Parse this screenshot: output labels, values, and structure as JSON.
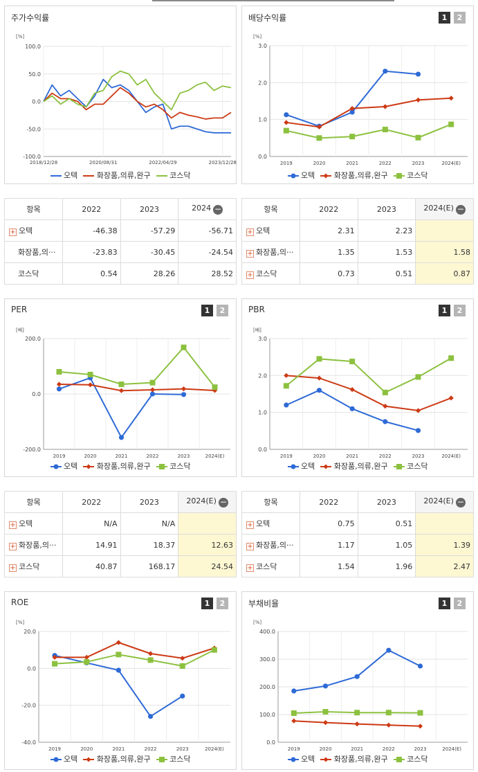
{
  "colors": {
    "otek": "#2e6ad6",
    "industry": "#cc3a14",
    "kosdaq": "#8cc13f"
  },
  "legend": [
    "오텍",
    "화장품,의류,완구",
    "코스닥"
  ],
  "tabs": [
    "1",
    "2"
  ],
  "panels": {
    "stock": {
      "title": "주가수익률",
      "unit": "[%]",
      "yticks": [
        "100.0",
        "50.0",
        "0.0",
        "-50.0",
        "-100.0"
      ],
      "xticks": [
        "2018/12/28",
        "2020/08/31",
        "2022/04/29",
        "2023/12/28"
      ]
    },
    "dividend": {
      "title": "배당수익률",
      "unit": "[%]",
      "yticks": [
        "3.0",
        "2.0",
        "1.0",
        "0.0"
      ],
      "xticks": [
        "2019",
        "2020",
        "2021",
        "2022",
        "2023",
        "2024(E)"
      ]
    },
    "per": {
      "title": "PER",
      "unit": "[배]",
      "yticks": [
        "200.0",
        "0.0",
        "-200.0"
      ],
      "xticks": [
        "2019",
        "2020",
        "2021",
        "2022",
        "2023",
        "2024(E)"
      ]
    },
    "pbr": {
      "title": "PBR",
      "unit": "[배]",
      "yticks": [
        "3.0",
        "2.0",
        "1.0",
        "0.0"
      ],
      "xticks": [
        "2019",
        "2020",
        "2021",
        "2022",
        "2023",
        "2024(E)"
      ]
    },
    "roe": {
      "title": "ROE",
      "unit": "[%]",
      "yticks": [
        "20.0",
        "0.0",
        "-20.0",
        "-40.0"
      ],
      "xticks": [
        "2019",
        "2020",
        "2021",
        "2022",
        "2023",
        "2024(E)"
      ]
    },
    "debt": {
      "title": "부채비율",
      "unit": "[%]",
      "yticks": [
        "400.0",
        "300.0",
        "200.0",
        "100.0",
        "0.0"
      ],
      "xticks": [
        "2019",
        "2020",
        "2021",
        "2022",
        "2023",
        "2024(E)"
      ]
    }
  },
  "tables": {
    "stock": {
      "headers": [
        "항목",
        "2022",
        "2023",
        "2024"
      ],
      "rows": [
        {
          "name": "오텍",
          "plus": true,
          "values": [
            "-46.38",
            "-57.29",
            "-56.71"
          ]
        },
        {
          "name": "화장품,의···",
          "plus": false,
          "values": [
            "-23.83",
            "-30.45",
            "-24.54"
          ]
        },
        {
          "name": "코스닥",
          "plus": false,
          "values": [
            "0.54",
            "28.26",
            "28.52"
          ]
        }
      ]
    },
    "dividend": {
      "headers": [
        "항목",
        "2022",
        "2023",
        "2024(E)"
      ],
      "rows": [
        {
          "name": "오텍",
          "plus": true,
          "values": [
            "2.31",
            "2.23",
            ""
          ]
        },
        {
          "name": "화장품,의···",
          "plus": true,
          "values": [
            "1.35",
            "1.53",
            "1.58"
          ]
        },
        {
          "name": "코스닥",
          "plus": true,
          "values": [
            "0.73",
            "0.51",
            "0.87"
          ]
        }
      ]
    },
    "per": {
      "headers": [
        "항목",
        "2022",
        "2023",
        "2024(E)"
      ],
      "rows": [
        {
          "name": "오텍",
          "plus": true,
          "values": [
            "N/A",
            "N/A",
            ""
          ]
        },
        {
          "name": "화장품,의···",
          "plus": true,
          "values": [
            "14.91",
            "18.37",
            "12.63"
          ]
        },
        {
          "name": "코스닥",
          "plus": true,
          "values": [
            "40.87",
            "168.17",
            "24.54"
          ]
        }
      ]
    },
    "pbr": {
      "headers": [
        "항목",
        "2022",
        "2023",
        "2024(E)"
      ],
      "rows": [
        {
          "name": "오텍",
          "plus": true,
          "values": [
            "0.75",
            "0.51",
            ""
          ]
        },
        {
          "name": "화장품,의···",
          "plus": true,
          "values": [
            "1.17",
            "1.05",
            "1.39"
          ]
        },
        {
          "name": "코스닥",
          "plus": true,
          "values": [
            "1.54",
            "1.96",
            "2.47"
          ]
        }
      ]
    }
  },
  "chart_data": [
    {
      "id": "stock",
      "type": "line",
      "title": "주가수익률",
      "ylabel": "[%]",
      "ylim": [
        -100,
        100
      ],
      "x": [
        "2018/12/28",
        "2019/03",
        "2019/06",
        "2019/09",
        "2019/12",
        "2020/03",
        "2020/05",
        "2020/08/31",
        "2020/11",
        "2021/02",
        "2021/05",
        "2021/08",
        "2021/11",
        "2022/02",
        "2022/04/29",
        "2022/07",
        "2022/10",
        "2023/01",
        "2023/04",
        "2023/07",
        "2023/10",
        "2023/12/28",
        "2024/03"
      ],
      "series": [
        {
          "name": "오텍",
          "values": [
            0,
            30,
            10,
            20,
            5,
            -10,
            10,
            40,
            25,
            30,
            20,
            0,
            -20,
            -10,
            -5,
            -50,
            -45,
            -45,
            -50,
            -55,
            -57,
            -57,
            -57
          ]
        },
        {
          "name": "화장품,의류,완구",
          "values": [
            0,
            15,
            5,
            5,
            0,
            -15,
            -5,
            -5,
            10,
            25,
            15,
            0,
            -10,
            -5,
            -15,
            -30,
            -20,
            -25,
            -28,
            -32,
            -30,
            -30,
            -20
          ]
        },
        {
          "name": "코스닥",
          "values": [
            0,
            10,
            -5,
            5,
            -5,
            -10,
            15,
            20,
            45,
            55,
            50,
            30,
            40,
            15,
            0,
            -15,
            15,
            20,
            30,
            35,
            20,
            28,
            25
          ]
        }
      ]
    },
    {
      "id": "dividend",
      "type": "line",
      "title": "배당수익률",
      "ylabel": "[%]",
      "ylim": [
        0,
        3
      ],
      "categories": [
        "2019",
        "2020",
        "2021",
        "2022",
        "2023",
        "2024(E)"
      ],
      "series": [
        {
          "name": "오텍",
          "values": [
            1.13,
            0.82,
            1.2,
            2.31,
            2.23,
            null
          ]
        },
        {
          "name": "화장품,의류,완구",
          "values": [
            0.92,
            0.8,
            1.3,
            1.35,
            1.53,
            1.58
          ]
        },
        {
          "name": "코스닥",
          "values": [
            0.7,
            0.5,
            0.54,
            0.73,
            0.51,
            0.87
          ]
        }
      ]
    },
    {
      "id": "per",
      "type": "line",
      "title": "PER",
      "ylabel": "[배]",
      "ylim": [
        -200,
        200
      ],
      "categories": [
        "2019",
        "2020",
        "2021",
        "2022",
        "2023",
        "2024(E)"
      ],
      "series": [
        {
          "name": "오텍",
          "values": [
            18,
            58,
            -157,
            0,
            -2,
            null
          ]
        },
        {
          "name": "화장품,의류,완구",
          "values": [
            35,
            33,
            12,
            14.91,
            18.37,
            12.63
          ]
        },
        {
          "name": "코스닥",
          "values": [
            80,
            70,
            35,
            40.87,
            168.17,
            24.54
          ]
        }
      ]
    },
    {
      "id": "pbr",
      "type": "line",
      "title": "PBR",
      "ylabel": "[배]",
      "ylim": [
        0,
        3
      ],
      "categories": [
        "2019",
        "2020",
        "2021",
        "2022",
        "2023",
        "2024(E)"
      ],
      "series": [
        {
          "name": "오텍",
          "values": [
            1.2,
            1.6,
            1.1,
            0.75,
            0.51,
            null
          ]
        },
        {
          "name": "화장품,의류,완구",
          "values": [
            2.0,
            1.93,
            1.62,
            1.17,
            1.05,
            1.39
          ]
        },
        {
          "name": "코스닥",
          "values": [
            1.72,
            2.45,
            2.38,
            1.54,
            1.96,
            2.47
          ]
        }
      ]
    },
    {
      "id": "roe",
      "type": "line",
      "title": "ROE",
      "ylabel": "[%]",
      "ylim": [
        -40,
        20
      ],
      "categories": [
        "2019",
        "2020",
        "2021",
        "2022",
        "2023",
        "2024(E)"
      ],
      "series": [
        {
          "name": "오텍",
          "values": [
            7,
            3,
            -1,
            -26,
            -15,
            null
          ]
        },
        {
          "name": "화장품,의류,완구",
          "values": [
            6,
            6,
            14,
            8,
            5.5,
            11
          ]
        },
        {
          "name": "코스닥",
          "values": [
            2.5,
            3.5,
            7.5,
            4.5,
            1.3,
            10
          ]
        }
      ]
    },
    {
      "id": "debt",
      "type": "line",
      "title": "부채비율",
      "ylabel": "[%]",
      "ylim": [
        0,
        400
      ],
      "categories": [
        "2019",
        "2020",
        "2021",
        "2022",
        "2023",
        "2024(E)"
      ],
      "series": [
        {
          "name": "오텍",
          "values": [
            185,
            203,
            237,
            332,
            275,
            null
          ]
        },
        {
          "name": "화장품,의류,완구",
          "values": [
            77,
            71,
            66,
            62,
            58,
            null
          ]
        },
        {
          "name": "코스닥",
          "values": [
            105,
            110,
            107,
            107,
            106,
            null
          ]
        }
      ]
    }
  ]
}
